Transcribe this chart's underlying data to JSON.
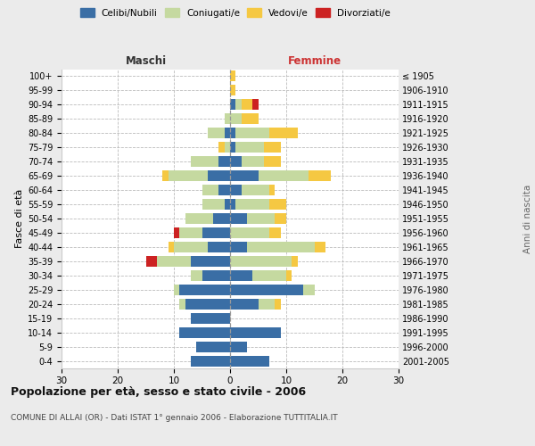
{
  "age_groups": [
    "0-4",
    "5-9",
    "10-14",
    "15-19",
    "20-24",
    "25-29",
    "30-34",
    "35-39",
    "40-44",
    "45-49",
    "50-54",
    "55-59",
    "60-64",
    "65-69",
    "70-74",
    "75-79",
    "80-84",
    "85-89",
    "90-94",
    "95-99",
    "100+"
  ],
  "birth_years": [
    "2001-2005",
    "1996-2000",
    "1991-1995",
    "1986-1990",
    "1981-1985",
    "1976-1980",
    "1971-1975",
    "1966-1970",
    "1961-1965",
    "1956-1960",
    "1951-1955",
    "1946-1950",
    "1941-1945",
    "1936-1940",
    "1931-1935",
    "1926-1930",
    "1921-1925",
    "1916-1920",
    "1911-1915",
    "1906-1910",
    "≤ 1905"
  ],
  "colors": {
    "celibi": "#3a6ea5",
    "coniugati": "#c5d9a0",
    "vedovi": "#f5c842",
    "divorziati": "#cc2222"
  },
  "maschi": {
    "celibi": [
      7,
      6,
      9,
      7,
      8,
      9,
      5,
      7,
      4,
      5,
      3,
      1,
      2,
      4,
      2,
      0,
      1,
      0,
      0,
      0,
      0
    ],
    "coniugati": [
      0,
      0,
      0,
      0,
      1,
      1,
      2,
      6,
      6,
      4,
      5,
      4,
      3,
      7,
      5,
      1,
      3,
      1,
      0,
      0,
      0
    ],
    "vedovi": [
      0,
      0,
      0,
      0,
      0,
      0,
      0,
      0,
      1,
      0,
      0,
      0,
      0,
      1,
      0,
      1,
      0,
      0,
      0,
      0,
      0
    ],
    "divorziati": [
      0,
      0,
      0,
      0,
      0,
      0,
      0,
      2,
      0,
      1,
      0,
      0,
      0,
      0,
      0,
      0,
      0,
      0,
      0,
      0,
      0
    ]
  },
  "femmine": {
    "celibi": [
      7,
      3,
      9,
      0,
      5,
      13,
      4,
      0,
      3,
      0,
      3,
      1,
      2,
      5,
      2,
      1,
      1,
      0,
      1,
      0,
      0
    ],
    "coniugati": [
      0,
      0,
      0,
      0,
      3,
      2,
      6,
      11,
      12,
      7,
      5,
      6,
      5,
      9,
      4,
      5,
      6,
      2,
      1,
      0,
      0
    ],
    "vedovi": [
      0,
      0,
      0,
      0,
      1,
      0,
      1,
      1,
      2,
      2,
      2,
      3,
      1,
      4,
      3,
      3,
      5,
      3,
      2,
      1,
      1
    ],
    "divorziati": [
      0,
      0,
      0,
      0,
      0,
      0,
      0,
      0,
      0,
      0,
      0,
      0,
      0,
      0,
      0,
      0,
      0,
      0,
      1,
      0,
      0
    ]
  },
  "xlim": 30,
  "title": "Popolazione per età, sesso e stato civile - 2006",
  "subtitle": "COMUNE DI ALLAI (OR) - Dati ISTAT 1° gennaio 2006 - Elaborazione TUTTITALIA.IT",
  "ylabel_left": "Fasce di età",
  "ylabel_right": "Anni di nascita",
  "xlabel_left": "Maschi",
  "xlabel_right": "Femmine",
  "bg_color": "#ebebeb",
  "plot_bg": "#ffffff"
}
